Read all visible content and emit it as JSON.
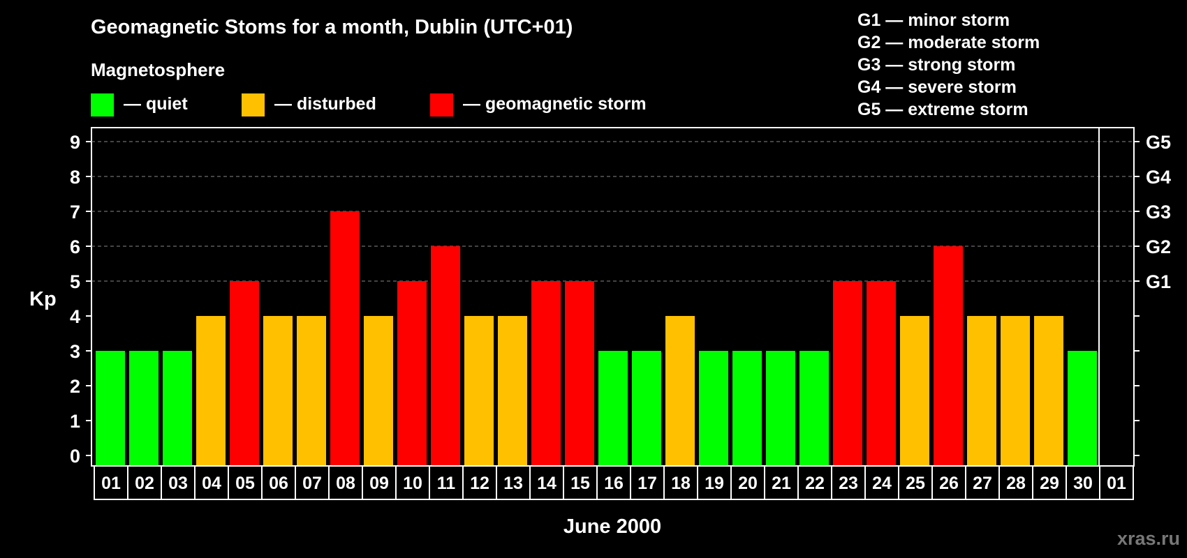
{
  "chart_data": {
    "type": "bar",
    "title": "Geomagnetic Stoms for a month, Dublin (UTC+01)",
    "legend_title": "Magnetosphere",
    "legend": [
      {
        "label": "— quiet",
        "color": "#00ff00"
      },
      {
        "label": "— disturbed",
        "color": "#ffc000"
      },
      {
        "label": "— geomagnetic storm",
        "color": "#ff0000"
      }
    ],
    "storm_scale": [
      "G1 — minor storm",
      "G2 — moderate storm",
      "G3 — strong storm",
      "G4 — severe storm",
      "G5 — extreme storm"
    ],
    "ylabel": "Kp",
    "xlabel": "June 2000",
    "ylim": [
      0,
      9
    ],
    "yticks": [
      "0",
      "1",
      "2",
      "3",
      "4",
      "5",
      "6",
      "7",
      "8",
      "9"
    ],
    "right_axis": [
      {
        "kp": 5,
        "label": "G1"
      },
      {
        "kp": 6,
        "label": "G2"
      },
      {
        "kp": 7,
        "label": "G3"
      },
      {
        "kp": 8,
        "label": "G4"
      },
      {
        "kp": 9,
        "label": "G5"
      }
    ],
    "categories": [
      "01",
      "02",
      "03",
      "04",
      "05",
      "06",
      "07",
      "08",
      "09",
      "10",
      "11",
      "12",
      "13",
      "14",
      "15",
      "16",
      "17",
      "18",
      "19",
      "20",
      "21",
      "22",
      "23",
      "24",
      "25",
      "26",
      "27",
      "28",
      "29",
      "30",
      "01"
    ],
    "values": [
      3,
      3,
      3,
      4,
      5,
      4,
      4,
      7,
      4,
      5,
      6,
      4,
      4,
      5,
      5,
      3,
      3,
      4,
      3,
      3,
      3,
      3,
      5,
      5,
      4,
      6,
      4,
      4,
      4,
      3,
      null
    ],
    "grid": true
  },
  "watermark": "xras.ru"
}
